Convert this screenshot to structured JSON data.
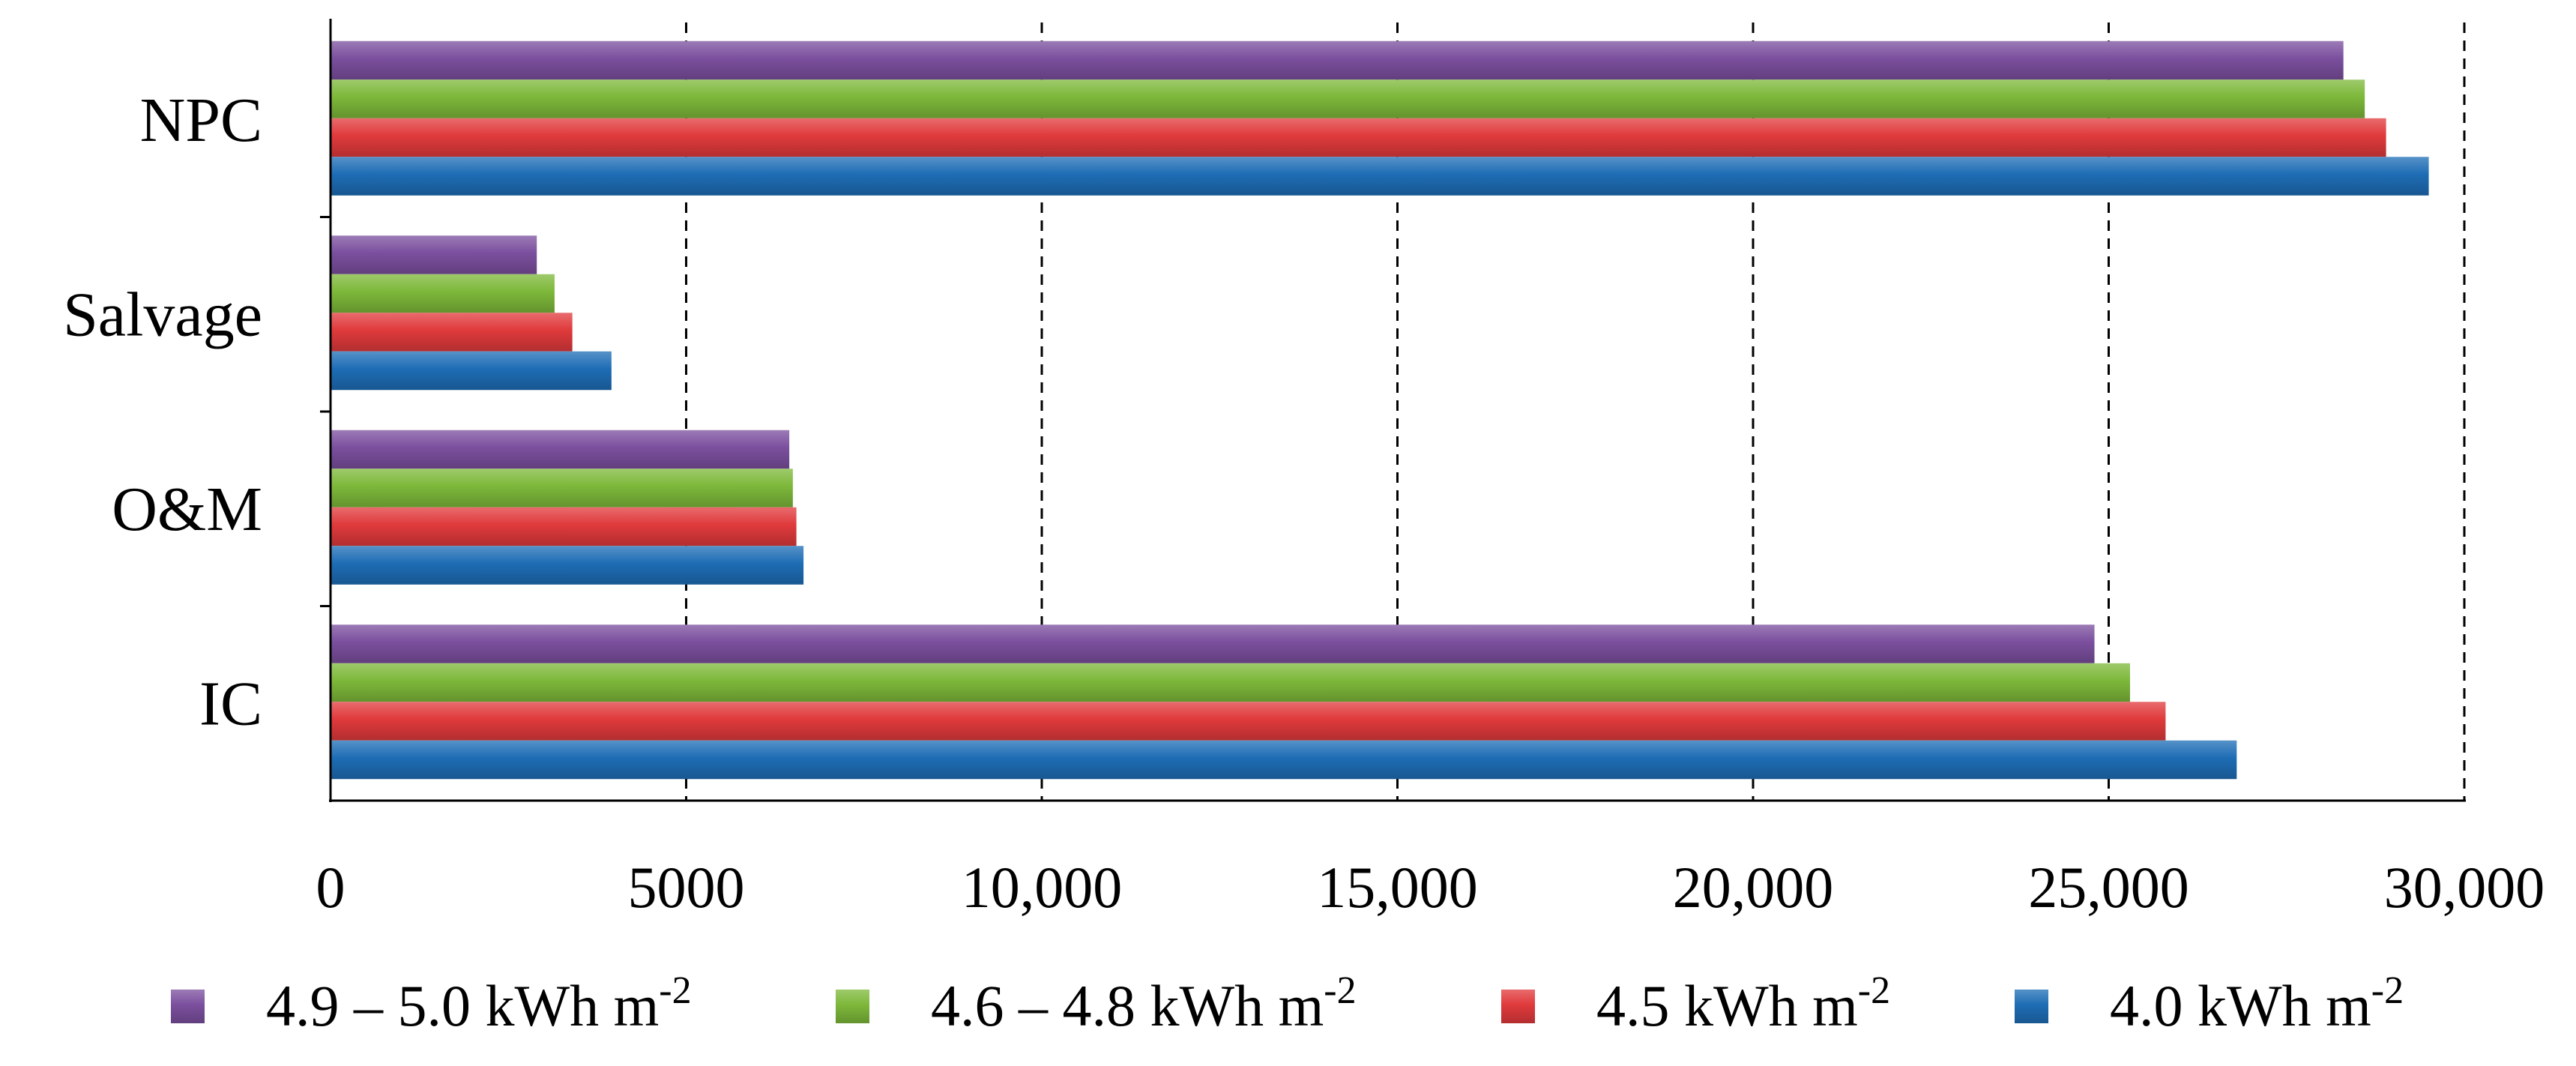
{
  "chart_data": {
    "type": "bar",
    "orientation": "horizontal",
    "categories": [
      "NPC",
      "Salvage",
      "O&M",
      "IC"
    ],
    "series": [
      {
        "name": "4.9 – 5.0 kWh m",
        "sup": "-2",
        "color": "#7B4F9E",
        "values": [
          28300,
          2900,
          6450,
          24800
        ]
      },
      {
        "name": "4.6 – 4.8 kWh m",
        "sup": "-2",
        "color": "#7DB83A",
        "values": [
          28600,
          3150,
          6500,
          25300
        ]
      },
      {
        "name": "4.5 kWh m",
        "sup": "-2",
        "color": "#E03A3C",
        "values": [
          28900,
          3400,
          6550,
          25800
        ]
      },
      {
        "name": "4.0 kWh m",
        "sup": "-2",
        "color": "#1E6DB5",
        "values": [
          29500,
          3950,
          6650,
          26800
        ]
      }
    ],
    "xlim": [
      0,
      30000
    ],
    "xticks": [
      0,
      5000,
      10000,
      15000,
      20000,
      25000,
      30000
    ],
    "xtick_labels": [
      "0",
      "5000",
      "10,000",
      "15,000",
      "20,000",
      "25,000",
      "30,000"
    ],
    "grid": "vertical dashed",
    "legend_position": "bottom"
  }
}
